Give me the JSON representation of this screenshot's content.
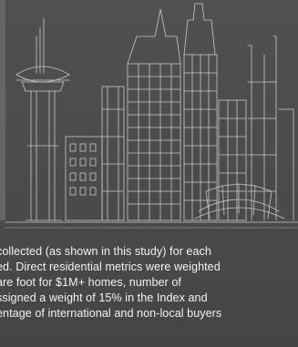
{
  "illustration": {
    "icon": "city-skyline-sketch-icon",
    "line_color": "#c9c9c9",
    "background_color": "#4f4f51"
  },
  "body_text": {
    "lines": [
      "collected (as shown in this study) for each",
      "ed. Direct residential metrics were weighted",
      "are foot for $1M+ homes, number of",
      "ssigned a weight of 15% in the Index and",
      "entage of international and non-local buyers"
    ],
    "color": "#f2f2f2"
  }
}
